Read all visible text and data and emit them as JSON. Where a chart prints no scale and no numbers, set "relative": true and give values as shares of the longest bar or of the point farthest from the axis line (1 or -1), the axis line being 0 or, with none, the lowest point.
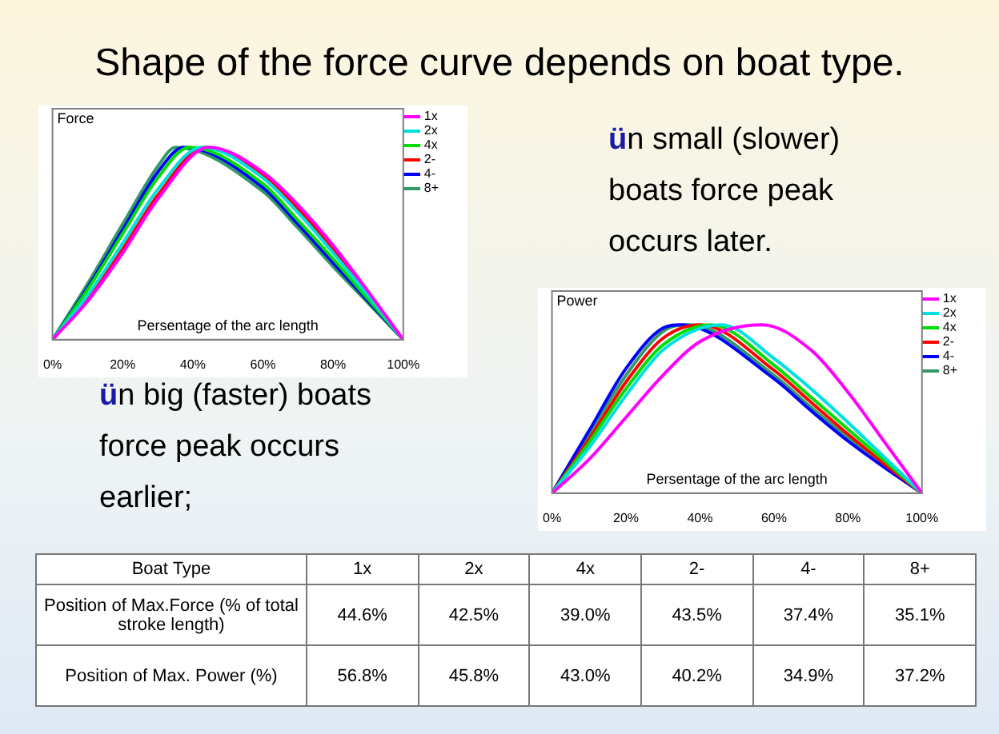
{
  "chart_data": [
    {
      "type": "line",
      "title": "Shape of the force curve depends on boat type.",
      "ylabel": "Force",
      "xlabel": "Persentage of the arc length",
      "relative": true,
      "tick_labels": "x",
      "legend": "top right",
      "xlim": [
        0,
        100
      ],
      "xticks": [
        {
          "value": 0,
          "label": "0%"
        },
        {
          "value": 20,
          "label": "20%"
        },
        {
          "value": 40,
          "label": "40%"
        },
        {
          "value": 60,
          "label": "60%"
        },
        {
          "value": 80,
          "label": "80%"
        },
        {
          "value": 100,
          "label": "100%"
        }
      ],
      "annotations": [
        "ün small (slower) boats force peak occurs later.",
        "ün big (faster) boats force peak occurs earlier;"
      ],
      "series": [
        {
          "name": "1x",
          "color": "#ff00ff",
          "x": [
            0,
            10,
            20,
            30,
            44.6,
            60,
            70,
            80,
            90,
            100
          ],
          "values": [
            0,
            0.2,
            0.45,
            0.73,
            1,
            0.87,
            0.7,
            0.49,
            0.25,
            0
          ]
        },
        {
          "name": "2x",
          "color": "#00e0e0",
          "x": [
            0,
            10,
            20,
            30,
            42.5,
            60,
            70,
            80,
            90,
            100
          ],
          "values": [
            0,
            0.23,
            0.5,
            0.78,
            1,
            0.84,
            0.66,
            0.45,
            0.23,
            0
          ]
        },
        {
          "name": "4x",
          "color": "#00dd00",
          "x": [
            0,
            10,
            20,
            30,
            39,
            60,
            70,
            80,
            90,
            100
          ],
          "values": [
            0,
            0.26,
            0.55,
            0.84,
            1,
            0.81,
            0.62,
            0.42,
            0.21,
            0
          ]
        },
        {
          "name": "2-",
          "color": "#ff0000",
          "x": [
            0,
            10,
            20,
            30,
            43.5,
            60,
            70,
            80,
            90,
            100
          ],
          "values": [
            0,
            0.21,
            0.47,
            0.75,
            1,
            0.86,
            0.68,
            0.47,
            0.24,
            0
          ]
        },
        {
          "name": "4-",
          "color": "#0000ff",
          "x": [
            0,
            10,
            20,
            30,
            37.4,
            60,
            70,
            80,
            90,
            100
          ],
          "values": [
            0,
            0.27,
            0.57,
            0.87,
            1,
            0.79,
            0.6,
            0.4,
            0.2,
            0
          ]
        },
        {
          "name": "8+",
          "color": "#339966",
          "x": [
            0,
            10,
            20,
            30,
            35.1,
            60,
            70,
            80,
            90,
            100
          ],
          "values": [
            0,
            0.29,
            0.6,
            0.9,
            1,
            0.77,
            0.58,
            0.38,
            0.19,
            0
          ]
        }
      ]
    },
    {
      "type": "line",
      "ylabel": "Power",
      "xlabel": "Persentage of the arc length",
      "relative": true,
      "tick_labels": "x",
      "legend": "top right",
      "xlim": [
        0,
        100
      ],
      "xticks": [
        {
          "value": 0,
          "label": "0%"
        },
        {
          "value": 20,
          "label": "20%"
        },
        {
          "value": 40,
          "label": "40%"
        },
        {
          "value": 60,
          "label": "60%"
        },
        {
          "value": 80,
          "label": "80%"
        },
        {
          "value": 100,
          "label": "100%"
        }
      ],
      "series": [
        {
          "name": "1x",
          "color": "#ff00ff",
          "x": [
            0,
            10,
            20,
            30,
            40,
            56.8,
            70,
            80,
            90,
            100
          ],
          "values": [
            0,
            0.2,
            0.45,
            0.7,
            0.9,
            1,
            0.85,
            0.6,
            0.3,
            0
          ]
        },
        {
          "name": "2x",
          "color": "#00e0e0",
          "x": [
            0,
            10,
            20,
            30,
            45.8,
            60,
            70,
            80,
            90,
            100
          ],
          "values": [
            0,
            0.27,
            0.58,
            0.85,
            1,
            0.8,
            0.62,
            0.42,
            0.21,
            0
          ]
        },
        {
          "name": "4x",
          "color": "#00dd00",
          "x": [
            0,
            10,
            20,
            30,
            43,
            60,
            70,
            80,
            90,
            100
          ],
          "values": [
            0,
            0.3,
            0.62,
            0.88,
            1,
            0.76,
            0.57,
            0.38,
            0.19,
            0
          ]
        },
        {
          "name": "2-",
          "color": "#ff0000",
          "x": [
            0,
            10,
            20,
            30,
            40.2,
            60,
            70,
            80,
            90,
            100
          ],
          "values": [
            0,
            0.32,
            0.66,
            0.92,
            1,
            0.73,
            0.54,
            0.35,
            0.17,
            0
          ]
        },
        {
          "name": "4-",
          "color": "#0000ff",
          "x": [
            0,
            10,
            20,
            30,
            34.9,
            60,
            70,
            80,
            90,
            100
          ],
          "values": [
            0,
            0.37,
            0.74,
            0.98,
            1,
            0.68,
            0.49,
            0.31,
            0.15,
            0
          ]
        },
        {
          "name": "8+",
          "color": "#339966",
          "x": [
            0,
            10,
            20,
            30,
            37.2,
            60,
            70,
            80,
            90,
            100
          ],
          "values": [
            0,
            0.35,
            0.7,
            0.96,
            1,
            0.7,
            0.51,
            0.33,
            0.16,
            0
          ]
        }
      ]
    },
    {
      "type": "other",
      "xlabel": "Boat Type",
      "categories": [
        "1x",
        "2x",
        "4x",
        "2-",
        "4-",
        "8+"
      ],
      "data_labels": true,
      "series": [
        {
          "name": "Position of Max.Force (% of total stroke length)",
          "values": [
            44.6,
            42.5,
            39.0,
            43.5,
            37.4,
            35.1
          ],
          "value_labels": [
            "44.6%",
            "42.5%",
            "39.0%",
            "43.5%",
            "37.4%",
            "35.1%"
          ]
        },
        {
          "name": "Position of Max. Power (%)",
          "values": [
            56.8,
            45.8,
            43.0,
            40.2,
            34.9,
            37.2
          ],
          "value_labels": [
            "56.8%",
            "45.8%",
            "43.0%",
            "40.2%",
            "34.9%",
            "37.2%"
          ]
        }
      ]
    }
  ]
}
